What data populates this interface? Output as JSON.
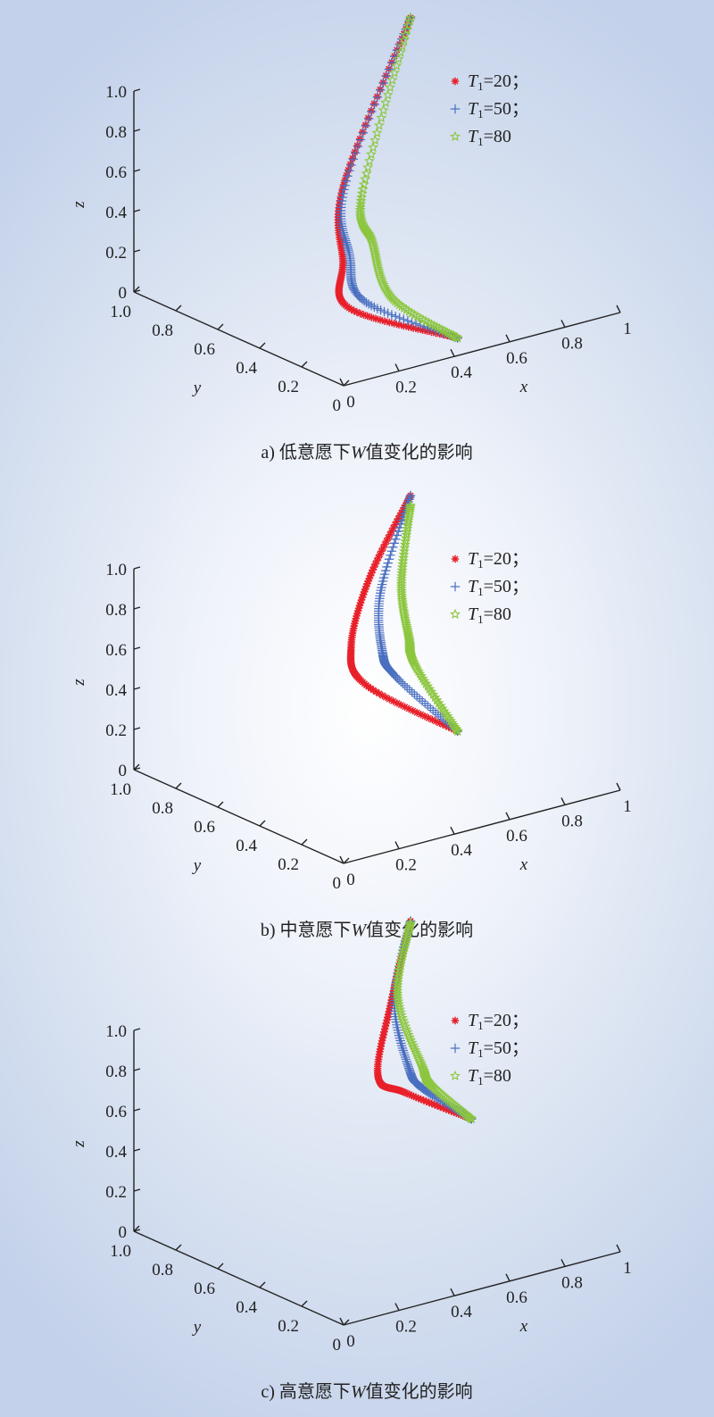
{
  "chart_data": [
    {
      "type": "scatter3d",
      "caption": {
        "prefix": "a) 低意愿下",
        "var": "W",
        "suffix": "值变化的影响"
      },
      "axes": {
        "x": {
          "label": "x",
          "range": [
            0,
            1
          ],
          "ticks": [
            "0",
            "0.2",
            "0.4",
            "0.6",
            "0.8",
            "1"
          ]
        },
        "y": {
          "label": "y",
          "range": [
            0,
            1
          ],
          "ticks": [
            "0",
            "0.2",
            "0.4",
            "0.6",
            "0.8",
            "1.0"
          ]
        },
        "z": {
          "label": "z",
          "range": [
            0,
            1
          ],
          "ticks": [
            "0",
            "0.2",
            "0.4",
            "0.6",
            "0.8",
            "1.0"
          ]
        }
      },
      "legend": [
        {
          "var": "T",
          "sub": "1",
          "text": "=20；",
          "marker": "asterisk",
          "color": "#e8202a"
        },
        {
          "var": "T",
          "sub": "1",
          "text": "=50；",
          "marker": "plus",
          "color": "#4a6fc0"
        },
        {
          "var": "T",
          "sub": "1",
          "text": "=80",
          "marker": "star",
          "color": "#8cc63f"
        }
      ],
      "series": [
        {
          "name": "T1=20",
          "points": [
            [
              0.45,
              0.05,
              0.05
            ],
            [
              0.05,
              0.04,
              0.35
            ],
            [
              0.02,
              0.03,
              0.6
            ],
            [
              0.0,
              0.0,
              1.0
            ],
            [
              1.0,
              1.0,
              1.0
            ]
          ]
        },
        {
          "name": "T1=50",
          "points": [
            [
              0.45,
              0.05,
              0.05
            ],
            [
              0.12,
              0.06,
              0.35
            ],
            [
              0.06,
              0.05,
              0.6
            ],
            [
              0.02,
              0.02,
              0.98
            ],
            [
              1.0,
              1.0,
              1.0
            ]
          ]
        },
        {
          "name": "T1=80",
          "points": [
            [
              0.45,
              0.05,
              0.05
            ],
            [
              0.25,
              0.1,
              0.3
            ],
            [
              0.18,
              0.1,
              0.6
            ],
            [
              0.12,
              0.07,
              0.88
            ],
            [
              1.0,
              1.0,
              1.0
            ]
          ]
        }
      ]
    },
    {
      "type": "scatter3d",
      "caption": {
        "prefix": "b) 中意愿下",
        "var": "W",
        "suffix": "值变化的影响"
      },
      "axes": {
        "x": {
          "label": "x",
          "range": [
            0,
            1
          ],
          "ticks": [
            "0",
            "0.2",
            "0.4",
            "0.6",
            "0.8",
            "1"
          ]
        },
        "y": {
          "label": "y",
          "range": [
            0,
            1
          ],
          "ticks": [
            "0",
            "0.2",
            "0.4",
            "0.6",
            "0.8",
            "1.0"
          ]
        },
        "z": {
          "label": "z",
          "range": [
            0,
            1
          ],
          "ticks": [
            "0",
            "0.2",
            "0.4",
            "0.6",
            "0.8",
            "1.0"
          ]
        }
      },
      "legend": [
        {
          "var": "T",
          "sub": "1",
          "text": "=20；",
          "marker": "asterisk",
          "color": "#e8202a"
        },
        {
          "var": "T",
          "sub": "1",
          "text": "=50；",
          "marker": "plus",
          "color": "#4a6fc0"
        },
        {
          "var": "T",
          "sub": "1",
          "text": "=80",
          "marker": "star",
          "color": "#8cc63f"
        }
      ],
      "series": [
        {
          "name": "T1=20",
          "points": [
            [
              0.45,
              0.05,
              0.47
            ],
            [
              0.12,
              0.05,
              0.82
            ],
            [
              0.05,
              0.03,
              1.05
            ],
            [
              0.4,
              0.4,
              1.1
            ],
            [
              1.0,
              1.0,
              1.0
            ]
          ]
        },
        {
          "name": "T1=50",
          "points": [
            [
              0.45,
              0.05,
              0.47
            ],
            [
              0.25,
              0.08,
              0.8
            ],
            [
              0.2,
              0.08,
              0.95
            ],
            [
              0.4,
              0.35,
              1.05
            ],
            [
              1.0,
              1.0,
              1.0
            ]
          ]
        },
        {
          "name": "T1=80",
          "points": [
            [
              0.45,
              0.05,
              0.47
            ],
            [
              0.35,
              0.12,
              0.8
            ],
            [
              0.35,
              0.15,
              0.92
            ],
            [
              0.55,
              0.45,
              0.98
            ],
            [
              1.0,
              1.0,
              0.95
            ]
          ]
        }
      ]
    },
    {
      "type": "scatter3d",
      "caption": {
        "prefix": "c) 高意愿下",
        "var": "W",
        "suffix": "值变化的影响"
      },
      "axes": {
        "x": {
          "label": "x",
          "range": [
            0,
            1
          ],
          "ticks": [
            "0",
            "0.2",
            "0.4",
            "0.6",
            "0.8",
            "1"
          ]
        },
        "y": {
          "label": "y",
          "range": [
            0,
            1
          ],
          "ticks": [
            "0",
            "0.2",
            "0.4",
            "0.6",
            "0.8",
            "1.0"
          ]
        },
        "z": {
          "label": "z",
          "range": [
            0,
            1
          ],
          "ticks": [
            "0",
            "0.2",
            "0.4",
            "0.6",
            "0.8",
            "1.0"
          ]
        }
      },
      "legend": [
        {
          "var": "T",
          "sub": "1",
          "text": "=20；",
          "marker": "asterisk",
          "color": "#e8202a"
        },
        {
          "var": "T",
          "sub": "1",
          "text": "=50；",
          "marker": "plus",
          "color": "#4a6fc0"
        },
        {
          "var": "T",
          "sub": "1",
          "text": "=80",
          "marker": "star",
          "color": "#8cc63f"
        }
      ],
      "series": [
        {
          "name": "T1=20",
          "points": [
            [
              0.5,
              0.05,
              0.82
            ],
            [
              0.3,
              0.1,
              1.0
            ],
            [
              0.2,
              0.1,
              1.12
            ],
            [
              0.55,
              0.5,
              1.17
            ],
            [
              1.0,
              1.0,
              1.18
            ]
          ]
        },
        {
          "name": "T1=50",
          "points": [
            [
              0.5,
              0.05,
              0.82
            ],
            [
              0.38,
              0.12,
              0.98
            ],
            [
              0.35,
              0.15,
              1.08
            ],
            [
              0.6,
              0.55,
              1.14
            ],
            [
              1.0,
              1.0,
              1.18
            ]
          ]
        },
        {
          "name": "T1=80",
          "points": [
            [
              0.5,
              0.05,
              0.82
            ],
            [
              0.42,
              0.14,
              0.98
            ],
            [
              0.42,
              0.18,
              1.05
            ],
            [
              0.65,
              0.6,
              1.12
            ],
            [
              1.0,
              1.0,
              1.17
            ]
          ]
        }
      ]
    }
  ]
}
